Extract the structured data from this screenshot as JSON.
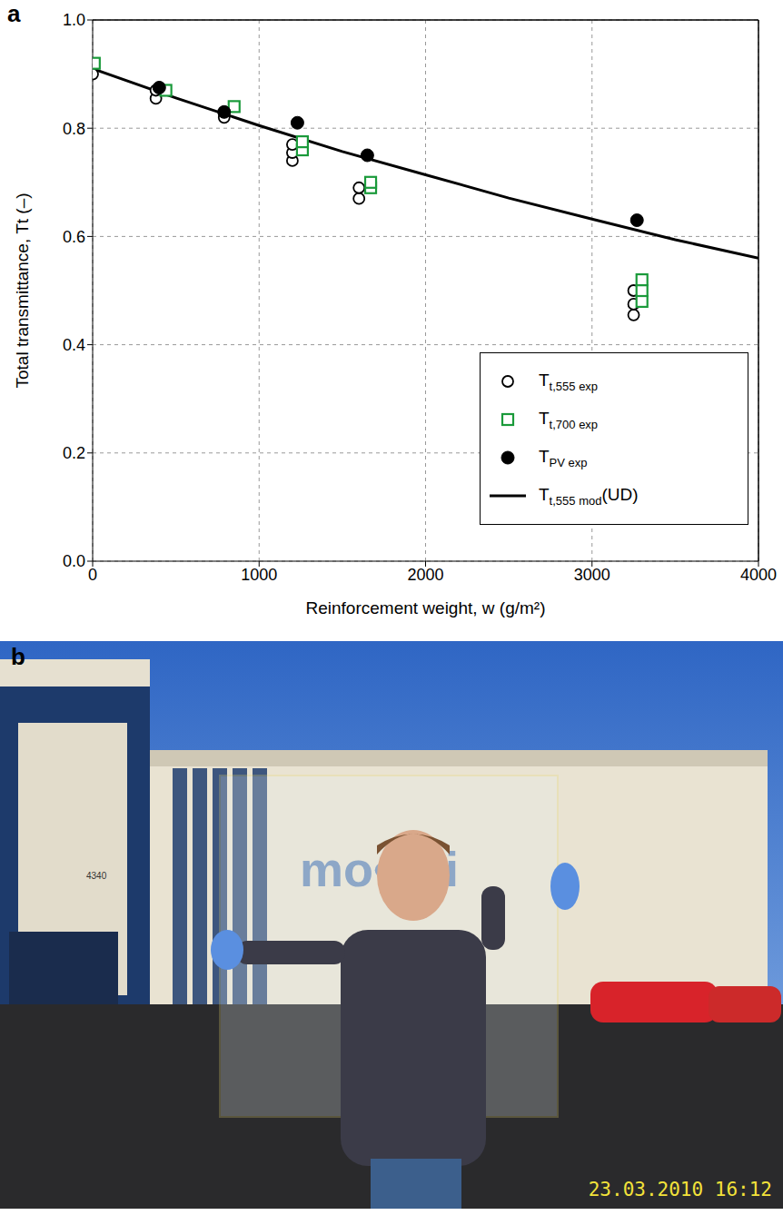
{
  "chart_data": {
    "type": "scatter",
    "panel_label": "a",
    "x_label": "Reinforcement weight, w (g/m²)",
    "y_label": "Total transmittance, Tt (–)",
    "xlim": [
      0,
      4000
    ],
    "xticks": [
      0,
      1000,
      2000,
      3000,
      4000
    ],
    "ylim": [
      0,
      1
    ],
    "yticks": [
      {
        "value": 0,
        "label": "0.0"
      },
      0.2,
      0.4,
      0.6,
      0.8,
      {
        "value": 1,
        "label": "1.0"
      }
    ],
    "grid": true,
    "legend": "lower right",
    "series": [
      {
        "name": "Tt,555 exp",
        "type": "scatter",
        "marker": "open_circle",
        "color": "#000000",
        "x": [
          0,
          380,
          380,
          400,
          790,
          790,
          1200,
          1200,
          1200,
          1600,
          1600,
          3250,
          3250,
          3250
        ],
        "values": [
          0.9,
          0.855,
          0.87,
          0.875,
          0.82,
          0.83,
          0.74,
          0.755,
          0.77,
          0.67,
          0.69,
          0.455,
          0.475,
          0.5
        ]
      },
      {
        "name": "Tt,700 exp",
        "type": "scatter",
        "marker": "open_square",
        "color": "#1a9a3a",
        "x": [
          10,
          440,
          850,
          1260,
          1260,
          1670,
          1670,
          3300,
          3300,
          3300
        ],
        "values": [
          0.92,
          0.87,
          0.84,
          0.76,
          0.775,
          0.69,
          0.7,
          0.48,
          0.5,
          0.52
        ]
      },
      {
        "name": "TPV exp",
        "type": "scatter",
        "marker": "filled_circle",
        "color": "#000000",
        "x": [
          400,
          790,
          1230,
          1650,
          3270
        ],
        "values": [
          0.875,
          0.83,
          0.81,
          0.75,
          0.63
        ]
      },
      {
        "name": "Tt,555 mod(UD)",
        "type": "line",
        "line_style": "solid",
        "color": "#000000",
        "x": [
          0,
          500,
          1000,
          1500,
          2000,
          2500,
          3000,
          3500,
          4000
        ],
        "values": [
          0.91,
          0.856,
          0.805,
          0.757,
          0.714,
          0.671,
          0.632,
          0.594,
          0.56
        ]
      }
    ]
  },
  "panel_b": {
    "label": "b",
    "sign": "mo•sci",
    "building_number": "4340",
    "timestamp": "23.03.2010 16:12"
  }
}
